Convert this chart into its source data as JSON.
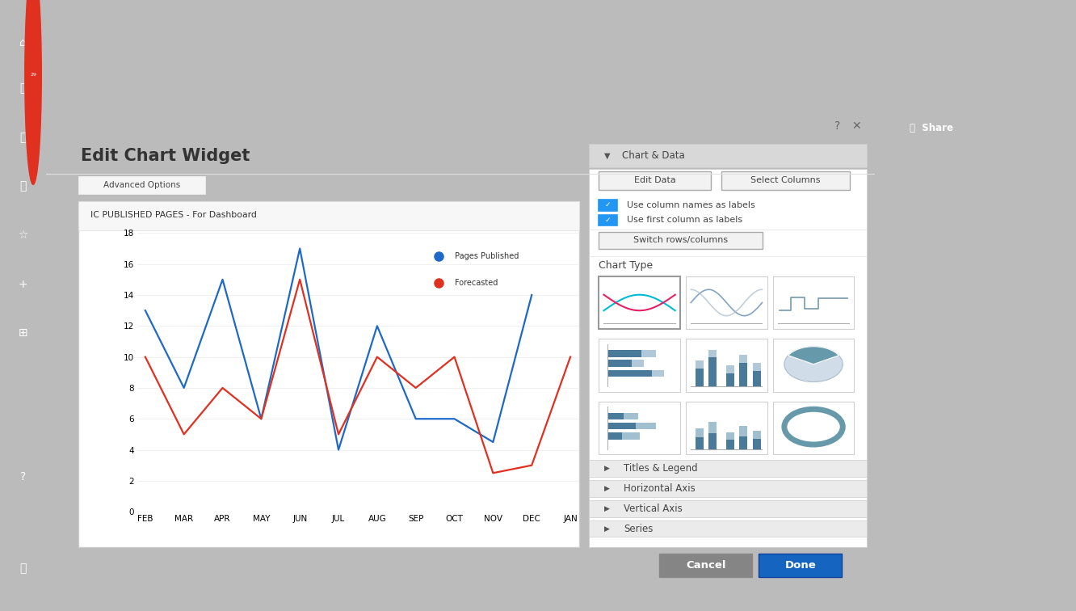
{
  "title": "Edit Chart Widget",
  "chart_title": "IC PUBLISHED PAGES - For Dashboard",
  "months": [
    "FEB",
    "MAR",
    "APR",
    "MAY",
    "JUN",
    "JUL",
    "AUG",
    "SEP",
    "OCT",
    "NOV",
    "DEC",
    "JAN"
  ],
  "pages_published": [
    13,
    8,
    15,
    6,
    17,
    4,
    12,
    6,
    6,
    4.5,
    14,
    null
  ],
  "forecasted": [
    10,
    5,
    8,
    6,
    15,
    5,
    10,
    8,
    10,
    2.5,
    3,
    10
  ],
  "pages_color": "#1e69c8",
  "forecast_color": "#e03020",
  "y_max": 18,
  "y_ticks": [
    0,
    2,
    4,
    6,
    8,
    10,
    12,
    14,
    16,
    18
  ],
  "bg_dialog": "#f5f5f5",
  "bg_white": "#ffffff",
  "bg_panel_header": "#d8d8d8",
  "accent_blue": "#1565c0",
  "btn_blue": "#1565c0",
  "sidebar_bg": "#3c3c3c",
  "checkbox_blue": "#2196f3",
  "outer_bg": "#bbbbbb"
}
